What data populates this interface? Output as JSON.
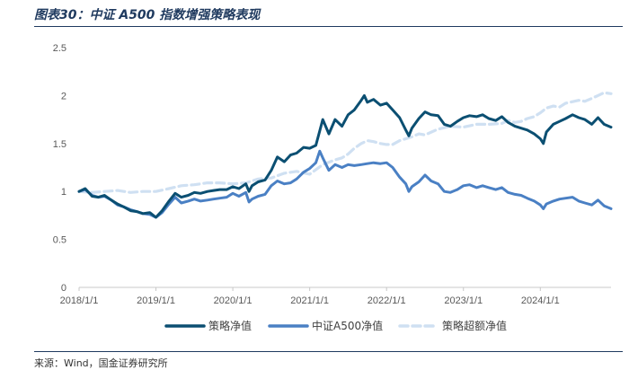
{
  "figure": {
    "title": "图表30：中证 A500 指数增强策略表现",
    "source": "来源：Wind，国金证券研究所"
  },
  "colors": {
    "strategy": "#0b4f72",
    "benchmark": "#4a80c4",
    "excess": "#cfe0f2",
    "tick": "#595959",
    "rule": "#1f3a5f"
  },
  "chart_data": {
    "type": "line",
    "title": "",
    "xlabel": "",
    "ylabel": "",
    "ylim": [
      0,
      2.5
    ],
    "yticks": [
      0,
      0.5,
      1,
      1.5,
      2,
      2.5
    ],
    "ytick_labels": [
      "0",
      "0.5",
      "1",
      "1.5",
      "2",
      "2.5"
    ],
    "xlim": [
      2018.0,
      2024.92
    ],
    "xticks": [
      2018,
      2019,
      2020,
      2021,
      2022,
      2023,
      2024
    ],
    "xtick_labels": [
      "2018/1/1",
      "2019/1/1",
      "2020/1/1",
      "2021/1/1",
      "2022/1/1",
      "2023/1/1",
      "2024/1/1"
    ],
    "grid": false,
    "legend_position": "bottom",
    "series": [
      {
        "name": "策略净值",
        "color": "#0b4f72",
        "dash": "solid",
        "points": [
          [
            2018.0,
            1.0
          ],
          [
            2018.08,
            1.03
          ],
          [
            2018.17,
            0.95
          ],
          [
            2018.25,
            0.94
          ],
          [
            2018.33,
            0.96
          ],
          [
            2018.42,
            0.91
          ],
          [
            2018.5,
            0.87
          ],
          [
            2018.58,
            0.84
          ],
          [
            2018.67,
            0.8
          ],
          [
            2018.75,
            0.79
          ],
          [
            2018.83,
            0.77
          ],
          [
            2018.92,
            0.78
          ],
          [
            2019.0,
            0.73
          ],
          [
            2019.08,
            0.8
          ],
          [
            2019.17,
            0.9
          ],
          [
            2019.25,
            0.98
          ],
          [
            2019.33,
            0.94
          ],
          [
            2019.42,
            0.96
          ],
          [
            2019.5,
            0.99
          ],
          [
            2019.58,
            0.98
          ],
          [
            2019.67,
            1.0
          ],
          [
            2019.75,
            1.01
          ],
          [
            2019.83,
            1.02
          ],
          [
            2019.92,
            1.02
          ],
          [
            2020.0,
            1.05
          ],
          [
            2020.08,
            1.03
          ],
          [
            2020.17,
            1.08
          ],
          [
            2020.21,
            1.0
          ],
          [
            2020.25,
            1.06
          ],
          [
            2020.33,
            1.1
          ],
          [
            2020.42,
            1.12
          ],
          [
            2020.5,
            1.22
          ],
          [
            2020.58,
            1.36
          ],
          [
            2020.67,
            1.31
          ],
          [
            2020.75,
            1.38
          ],
          [
            2020.83,
            1.4
          ],
          [
            2020.92,
            1.46
          ],
          [
            2021.0,
            1.45
          ],
          [
            2021.08,
            1.48
          ],
          [
            2021.13,
            1.63
          ],
          [
            2021.17,
            1.75
          ],
          [
            2021.25,
            1.6
          ],
          [
            2021.33,
            1.75
          ],
          [
            2021.42,
            1.68
          ],
          [
            2021.5,
            1.8
          ],
          [
            2021.58,
            1.85
          ],
          [
            2021.67,
            1.95
          ],
          [
            2021.71,
            2.0
          ],
          [
            2021.75,
            1.93
          ],
          [
            2021.83,
            1.96
          ],
          [
            2021.92,
            1.9
          ],
          [
            2022.0,
            1.92
          ],
          [
            2022.08,
            1.85
          ],
          [
            2022.17,
            1.77
          ],
          [
            2022.25,
            1.64
          ],
          [
            2022.29,
            1.58
          ],
          [
            2022.33,
            1.66
          ],
          [
            2022.42,
            1.76
          ],
          [
            2022.5,
            1.83
          ],
          [
            2022.58,
            1.8
          ],
          [
            2022.67,
            1.79
          ],
          [
            2022.75,
            1.7
          ],
          [
            2022.83,
            1.68
          ],
          [
            2022.92,
            1.73
          ],
          [
            2023.0,
            1.77
          ],
          [
            2023.08,
            1.79
          ],
          [
            2023.17,
            1.78
          ],
          [
            2023.25,
            1.8
          ],
          [
            2023.33,
            1.76
          ],
          [
            2023.42,
            1.74
          ],
          [
            2023.5,
            1.78
          ],
          [
            2023.58,
            1.72
          ],
          [
            2023.67,
            1.68
          ],
          [
            2023.75,
            1.66
          ],
          [
            2023.83,
            1.64
          ],
          [
            2023.92,
            1.6
          ],
          [
            2024.0,
            1.55
          ],
          [
            2024.04,
            1.5
          ],
          [
            2024.08,
            1.62
          ],
          [
            2024.17,
            1.7
          ],
          [
            2024.25,
            1.73
          ],
          [
            2024.33,
            1.76
          ],
          [
            2024.42,
            1.8
          ],
          [
            2024.5,
            1.77
          ],
          [
            2024.58,
            1.75
          ],
          [
            2024.67,
            1.7
          ],
          [
            2024.75,
            1.77
          ],
          [
            2024.83,
            1.7
          ],
          [
            2024.92,
            1.67
          ]
        ]
      },
      {
        "name": "中证A500净值",
        "color": "#4a80c4",
        "dash": "solid",
        "points": [
          [
            2018.0,
            1.0
          ],
          [
            2018.08,
            1.02
          ],
          [
            2018.17,
            0.96
          ],
          [
            2018.25,
            0.94
          ],
          [
            2018.33,
            0.95
          ],
          [
            2018.42,
            0.91
          ],
          [
            2018.5,
            0.86
          ],
          [
            2018.58,
            0.84
          ],
          [
            2018.67,
            0.81
          ],
          [
            2018.75,
            0.79
          ],
          [
            2018.83,
            0.77
          ],
          [
            2018.92,
            0.76
          ],
          [
            2019.0,
            0.73
          ],
          [
            2019.08,
            0.78
          ],
          [
            2019.17,
            0.87
          ],
          [
            2019.25,
            0.94
          ],
          [
            2019.33,
            0.88
          ],
          [
            2019.42,
            0.9
          ],
          [
            2019.5,
            0.92
          ],
          [
            2019.58,
            0.9
          ],
          [
            2019.67,
            0.91
          ],
          [
            2019.75,
            0.92
          ],
          [
            2019.83,
            0.93
          ],
          [
            2019.92,
            0.94
          ],
          [
            2020.0,
            0.98
          ],
          [
            2020.08,
            0.95
          ],
          [
            2020.17,
            0.99
          ],
          [
            2020.21,
            0.89
          ],
          [
            2020.25,
            0.92
          ],
          [
            2020.33,
            0.95
          ],
          [
            2020.42,
            0.97
          ],
          [
            2020.5,
            1.06
          ],
          [
            2020.58,
            1.11
          ],
          [
            2020.67,
            1.08
          ],
          [
            2020.75,
            1.09
          ],
          [
            2020.83,
            1.13
          ],
          [
            2020.92,
            1.2
          ],
          [
            2021.0,
            1.24
          ],
          [
            2021.08,
            1.3
          ],
          [
            2021.13,
            1.42
          ],
          [
            2021.17,
            1.35
          ],
          [
            2021.25,
            1.22
          ],
          [
            2021.33,
            1.28
          ],
          [
            2021.42,
            1.25
          ],
          [
            2021.5,
            1.28
          ],
          [
            2021.58,
            1.27
          ],
          [
            2021.67,
            1.28
          ],
          [
            2021.75,
            1.29
          ],
          [
            2021.83,
            1.3
          ],
          [
            2021.92,
            1.29
          ],
          [
            2022.0,
            1.3
          ],
          [
            2022.08,
            1.25
          ],
          [
            2022.17,
            1.15
          ],
          [
            2022.25,
            1.08
          ],
          [
            2022.29,
            1.0
          ],
          [
            2022.33,
            1.05
          ],
          [
            2022.42,
            1.1
          ],
          [
            2022.5,
            1.17
          ],
          [
            2022.58,
            1.11
          ],
          [
            2022.67,
            1.08
          ],
          [
            2022.75,
            1.0
          ],
          [
            2022.83,
            0.99
          ],
          [
            2022.92,
            1.02
          ],
          [
            2023.0,
            1.06
          ],
          [
            2023.08,
            1.07
          ],
          [
            2023.17,
            1.04
          ],
          [
            2023.25,
            1.06
          ],
          [
            2023.33,
            1.04
          ],
          [
            2023.42,
            1.02
          ],
          [
            2023.5,
            1.04
          ],
          [
            2023.58,
            0.99
          ],
          [
            2023.67,
            0.97
          ],
          [
            2023.75,
            0.96
          ],
          [
            2023.83,
            0.93
          ],
          [
            2023.92,
            0.9
          ],
          [
            2024.0,
            0.86
          ],
          [
            2024.04,
            0.82
          ],
          [
            2024.08,
            0.87
          ],
          [
            2024.17,
            0.9
          ],
          [
            2024.25,
            0.92
          ],
          [
            2024.33,
            0.93
          ],
          [
            2024.42,
            0.94
          ],
          [
            2024.5,
            0.9
          ],
          [
            2024.58,
            0.88
          ],
          [
            2024.67,
            0.86
          ],
          [
            2024.75,
            0.91
          ],
          [
            2024.83,
            0.85
          ],
          [
            2024.92,
            0.82
          ]
        ]
      },
      {
        "name": "策略超额净值",
        "color": "#cfe0f2",
        "dash": "dashed",
        "points": [
          [
            2018.0,
            1.0
          ],
          [
            2018.17,
            0.99
          ],
          [
            2018.33,
            1.0
          ],
          [
            2018.5,
            1.01
          ],
          [
            2018.67,
            0.99
          ],
          [
            2018.83,
            1.0
          ],
          [
            2019.0,
            1.0
          ],
          [
            2019.17,
            1.03
          ],
          [
            2019.33,
            1.06
          ],
          [
            2019.5,
            1.07
          ],
          [
            2019.67,
            1.09
          ],
          [
            2019.83,
            1.09
          ],
          [
            2020.0,
            1.08
          ],
          [
            2020.17,
            1.09
          ],
          [
            2020.33,
            1.13
          ],
          [
            2020.5,
            1.14
          ],
          [
            2020.67,
            1.19
          ],
          [
            2020.83,
            1.21
          ],
          [
            2021.0,
            1.18
          ],
          [
            2021.17,
            1.28
          ],
          [
            2021.33,
            1.33
          ],
          [
            2021.42,
            1.35
          ],
          [
            2021.5,
            1.39
          ],
          [
            2021.58,
            1.45
          ],
          [
            2021.67,
            1.5
          ],
          [
            2021.75,
            1.53
          ],
          [
            2021.83,
            1.52
          ],
          [
            2021.92,
            1.5
          ],
          [
            2022.0,
            1.49
          ],
          [
            2022.08,
            1.49
          ],
          [
            2022.17,
            1.53
          ],
          [
            2022.25,
            1.55
          ],
          [
            2022.33,
            1.57
          ],
          [
            2022.42,
            1.6
          ],
          [
            2022.5,
            1.59
          ],
          [
            2022.67,
            1.65
          ],
          [
            2022.83,
            1.68
          ],
          [
            2023.0,
            1.67
          ],
          [
            2023.17,
            1.7
          ],
          [
            2023.33,
            1.7
          ],
          [
            2023.5,
            1.71
          ],
          [
            2023.58,
            1.74
          ],
          [
            2023.67,
            1.72
          ],
          [
            2023.75,
            1.73
          ],
          [
            2023.83,
            1.76
          ],
          [
            2023.92,
            1.78
          ],
          [
            2024.0,
            1.82
          ],
          [
            2024.08,
            1.87
          ],
          [
            2024.17,
            1.89
          ],
          [
            2024.25,
            1.88
          ],
          [
            2024.33,
            1.92
          ],
          [
            2024.5,
            1.95
          ],
          [
            2024.58,
            1.94
          ],
          [
            2024.67,
            1.97
          ],
          [
            2024.75,
            2.0
          ],
          [
            2024.83,
            2.03
          ],
          [
            2024.92,
            2.02
          ]
        ]
      }
    ]
  }
}
